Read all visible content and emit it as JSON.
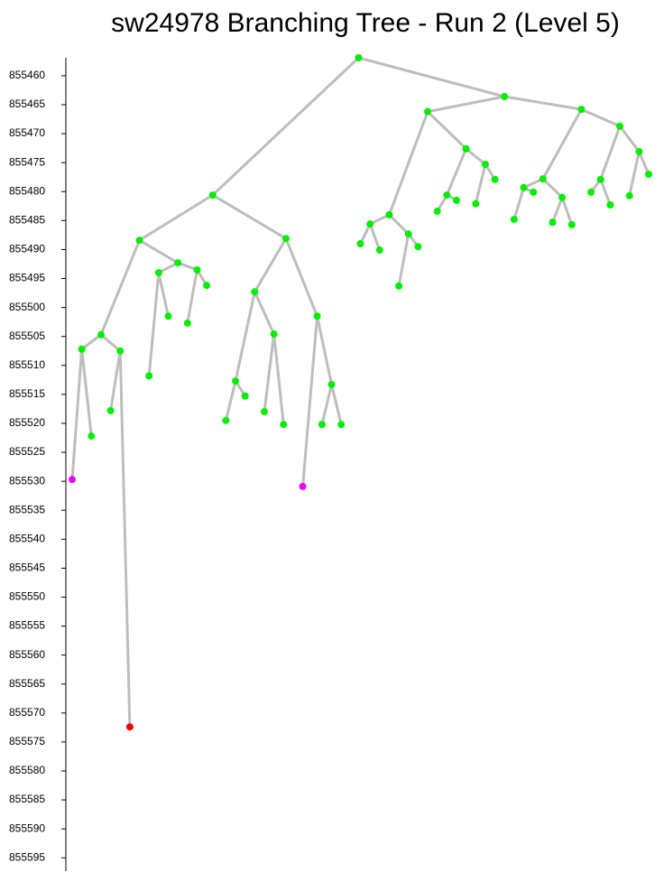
{
  "chart_data": {
    "type": "tree",
    "title": "sw24978 Branching Tree - Run 2 (Level 5)",
    "ylim": [
      855456.9,
      855597.3
    ],
    "y_inverted": true,
    "yticks": [
      855460,
      855465,
      855470,
      855475,
      855480,
      855485,
      855490,
      855495,
      855500,
      855505,
      855510,
      855515,
      855520,
      855525,
      855530,
      855535,
      855540,
      855545,
      855550,
      855555,
      855560,
      855565,
      855570,
      855575,
      855580,
      855585,
      855590,
      855595
    ],
    "node_color": "#00ee00",
    "edge_color": "#bdbdbd",
    "nodes": [
      {
        "value": 855456.9,
        "parent": null
      },
      {
        "value": 855480.6,
        "parent": 0
      },
      {
        "value": 855488.4,
        "parent": 1
      },
      {
        "value": 855504.7,
        "parent": 2
      },
      {
        "value": 855507.2,
        "parent": 3
      },
      {
        "value": 855529.7,
        "parent": 4,
        "color": "#ee00ee"
      },
      {
        "value": 855522.2,
        "parent": 4
      },
      {
        "value": 855507.5,
        "parent": 3
      },
      {
        "value": 855517.8,
        "parent": 7
      },
      {
        "value": 855572.4,
        "parent": 7,
        "color": "#ee0000"
      },
      {
        "value": 855492.3,
        "parent": 2
      },
      {
        "value": 855494.0,
        "parent": 10
      },
      {
        "value": 855511.8,
        "parent": 11
      },
      {
        "value": 855501.5,
        "parent": 11
      },
      {
        "value": 855493.5,
        "parent": 10
      },
      {
        "value": 855502.7,
        "parent": 14
      },
      {
        "value": 855496.2,
        "parent": 14
      },
      {
        "value": 855488.1,
        "parent": 1
      },
      {
        "value": 855497.3,
        "parent": 17
      },
      {
        "value": 855512.7,
        "parent": 18
      },
      {
        "value": 855519.5,
        "parent": 19
      },
      {
        "value": 855515.3,
        "parent": 19
      },
      {
        "value": 855504.6,
        "parent": 18
      },
      {
        "value": 855518.0,
        "parent": 22
      },
      {
        "value": 855520.2,
        "parent": 22
      },
      {
        "value": 855501.5,
        "parent": 17
      },
      {
        "value": 855530.9,
        "parent": 25,
        "color": "#ee00ee"
      },
      {
        "value": 855513.3,
        "parent": 25
      },
      {
        "value": 855520.2,
        "parent": 27
      },
      {
        "value": 855520.2,
        "parent": 27
      },
      {
        "value": 855463.6,
        "parent": 0
      },
      {
        "value": 855466.2,
        "parent": 30
      },
      {
        "value": 855484.0,
        "parent": 31
      },
      {
        "value": 855485.6,
        "parent": 32
      },
      {
        "value": 855489.0,
        "parent": 33
      },
      {
        "value": 855490.1,
        "parent": 33
      },
      {
        "value": 855487.3,
        "parent": 32
      },
      {
        "value": 855496.3,
        "parent": 36
      },
      {
        "value": 855489.5,
        "parent": 36
      },
      {
        "value": 855472.6,
        "parent": 31
      },
      {
        "value": 855480.6,
        "parent": 39
      },
      {
        "value": 855483.4,
        "parent": 40
      },
      {
        "value": 855481.5,
        "parent": 40
      },
      {
        "value": 855475.3,
        "parent": 39
      },
      {
        "value": 855482.1,
        "parent": 43
      },
      {
        "value": 855477.9,
        "parent": 43
      },
      {
        "value": 855465.8,
        "parent": 30
      },
      {
        "value": 855477.8,
        "parent": 46
      },
      {
        "value": 855479.3,
        "parent": 47
      },
      {
        "value": 855484.8,
        "parent": 48
      },
      {
        "value": 855480.1,
        "parent": 48
      },
      {
        "value": 855481.0,
        "parent": 47
      },
      {
        "value": 855485.3,
        "parent": 51
      },
      {
        "value": 855485.7,
        "parent": 51
      },
      {
        "value": 855468.7,
        "parent": 46
      },
      {
        "value": 855477.9,
        "parent": 54
      },
      {
        "value": 855480.1,
        "parent": 55
      },
      {
        "value": 855482.3,
        "parent": 55
      },
      {
        "value": 855473.1,
        "parent": 54
      },
      {
        "value": 855480.7,
        "parent": 58
      },
      {
        "value": 855477.0,
        "parent": 58
      }
    ]
  }
}
